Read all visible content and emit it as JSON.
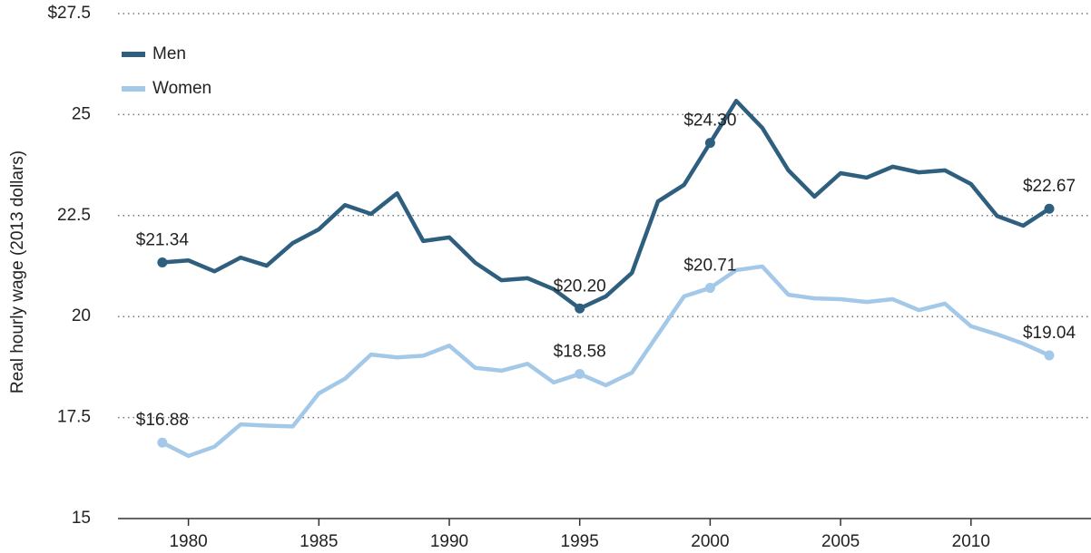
{
  "chart_data": {
    "type": "line",
    "y_label": "Real hourly wage (2013 dollars)",
    "x": [
      1979,
      1980,
      1981,
      1982,
      1983,
      1984,
      1985,
      1986,
      1987,
      1988,
      1989,
      1990,
      1991,
      1992,
      1993,
      1994,
      1995,
      1996,
      1997,
      1998,
      1999,
      2000,
      2001,
      2002,
      2003,
      2004,
      2005,
      2006,
      2007,
      2008,
      2009,
      2010,
      2011,
      2012,
      2013
    ],
    "series": [
      {
        "name": "Men",
        "color": "#2e5f7e",
        "values": [
          21.34,
          21.39,
          21.12,
          21.46,
          21.26,
          21.82,
          22.16,
          22.76,
          22.54,
          23.05,
          21.87,
          21.96,
          21.33,
          20.9,
          20.95,
          20.68,
          20.2,
          20.5,
          21.08,
          22.85,
          23.26,
          24.3,
          25.34,
          24.67,
          23.62,
          22.97,
          23.55,
          23.44,
          23.71,
          23.57,
          23.62,
          23.28,
          22.49,
          22.25,
          22.67
        ],
        "value_labels": [
          "$21.34",
          null,
          null,
          null,
          null,
          null,
          null,
          null,
          null,
          null,
          null,
          null,
          null,
          null,
          null,
          null,
          "$20.20",
          null,
          null,
          null,
          null,
          "$24.30",
          null,
          null,
          null,
          null,
          null,
          null,
          null,
          null,
          null,
          null,
          null,
          null,
          "$22.67"
        ]
      },
      {
        "name": "Women",
        "color": "#a3c8e8",
        "values": [
          16.88,
          16.55,
          16.78,
          17.33,
          17.3,
          17.28,
          18.1,
          18.46,
          19.06,
          18.99,
          19.03,
          19.28,
          18.73,
          18.66,
          18.83,
          18.37,
          18.58,
          18.3,
          18.61,
          19.56,
          20.5,
          20.71,
          21.15,
          21.24,
          20.54,
          20.45,
          20.43,
          20.36,
          20.43,
          20.16,
          20.32,
          19.76,
          19.56,
          19.33,
          19.04
        ],
        "value_labels": [
          "$16.88",
          null,
          null,
          null,
          null,
          null,
          null,
          null,
          null,
          null,
          null,
          null,
          null,
          null,
          null,
          null,
          "$18.58",
          null,
          null,
          null,
          null,
          "$20.71",
          null,
          null,
          null,
          null,
          null,
          null,
          null,
          null,
          null,
          null,
          null,
          null,
          "$19.04"
        ]
      }
    ],
    "xlim": [
      1977.3,
      2014.6
    ],
    "xticks": [
      1980,
      1985,
      1990,
      1995,
      2000,
      2005,
      2010
    ],
    "ylim": [
      15,
      27.5
    ],
    "yticks": [
      15,
      17.5,
      20,
      22.5,
      25,
      {
        "value": 27.5,
        "label": "$27.5"
      }
    ],
    "grid": true,
    "legend": "upper left"
  }
}
